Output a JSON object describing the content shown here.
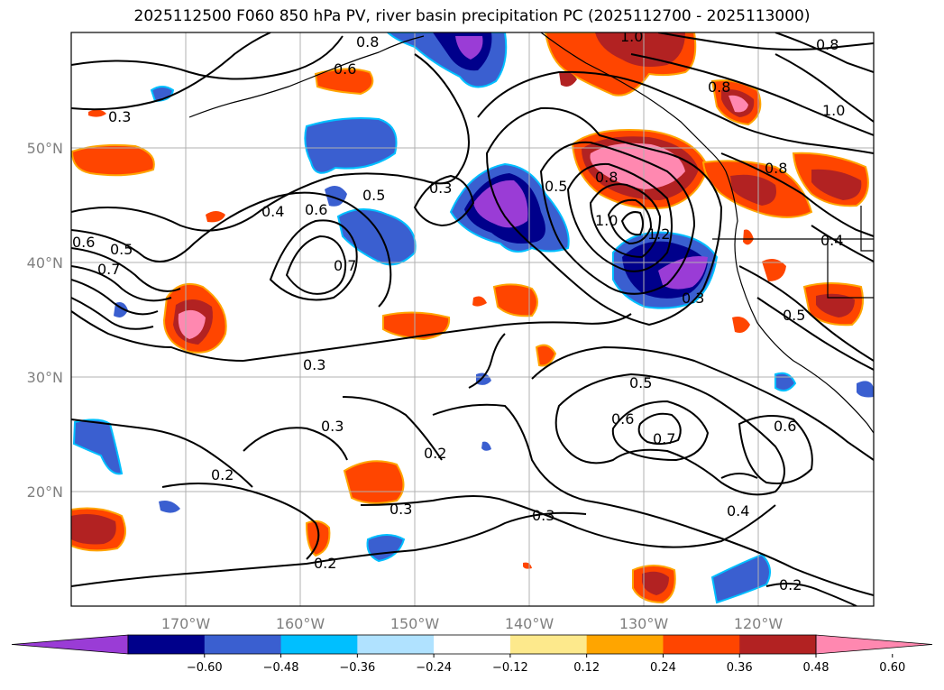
{
  "title": "2025112500 F060 850 hPa PV, river basin precipitation PC (2025112700 - 2025113000)",
  "lat_labels": [
    "50°N",
    "40°N",
    "30°N",
    "20°N"
  ],
  "lon_labels": [
    "170°W",
    "160°W",
    "150°W",
    "140°W",
    "130°W",
    "120°W"
  ],
  "contour_labels": [
    "0.8",
    "0.6",
    "0.3",
    "1.0",
    "0.8",
    "0.8",
    "1.0",
    "0.8",
    "0.4",
    "0.6",
    "0.5",
    "0.3",
    "0.5",
    "0.8",
    "1.0",
    "1.2",
    "0.6",
    "0.5",
    "0.7",
    "0.7",
    "0.3",
    "0.4",
    "0.5",
    "0.3",
    "0.5",
    "0.6",
    "0.7",
    "0.6",
    "0.3",
    "0.2",
    "0.2",
    "0.3",
    "0.3",
    "0.4",
    "0.2",
    "0.2"
  ],
  "colorbar": {
    "ticks": [
      "−0.60",
      "−0.48",
      "−0.36",
      "−0.24",
      "−0.12",
      "0.12",
      "0.24",
      "0.36",
      "0.48",
      "0.60"
    ],
    "colors": [
      "#9a3cd6",
      "#00008b",
      "#3a5fd0",
      "#00bfff",
      "#b0e2ff",
      "#ffffff",
      "#fde98c",
      "#ffa500",
      "#ff4500",
      "#b22222",
      "#ff88b0"
    ]
  }
}
